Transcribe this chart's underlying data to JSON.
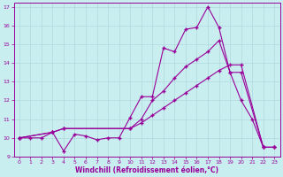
{
  "bg_color": "#c8eef0",
  "grid_color": "#b0d8dc",
  "line_color": "#990099",
  "xlabel": "Windchill (Refroidissement éolien,°C)",
  "xlim": [
    -0.5,
    23.5
  ],
  "ylim": [
    9,
    17.2
  ],
  "xticks": [
    0,
    1,
    2,
    3,
    4,
    5,
    6,
    7,
    8,
    9,
    10,
    11,
    12,
    13,
    14,
    15,
    16,
    17,
    18,
    19,
    20,
    21,
    22,
    23
  ],
  "yticks": [
    9,
    10,
    11,
    12,
    13,
    14,
    15,
    16,
    17
  ],
  "series1_x": [
    0,
    1,
    2,
    3,
    4,
    5,
    6,
    7,
    8,
    9,
    10,
    11,
    12,
    13,
    14,
    15,
    16,
    17,
    18,
    19,
    20,
    21,
    22,
    23
  ],
  "series1_y": [
    10.0,
    10.0,
    10.0,
    10.3,
    9.3,
    10.2,
    10.1,
    9.9,
    10.0,
    10.0,
    11.1,
    12.2,
    12.2,
    14.8,
    14.6,
    15.8,
    15.9,
    17.0,
    15.9,
    13.5,
    12.0,
    11.0,
    9.5,
    9.5
  ],
  "series2_x": [
    0,
    3,
    4,
    10,
    11,
    12,
    13,
    14,
    15,
    16,
    17,
    18,
    19,
    20,
    22,
    23
  ],
  "series2_y": [
    10.0,
    10.3,
    10.5,
    10.5,
    11.0,
    12.0,
    12.5,
    13.2,
    13.8,
    14.2,
    14.6,
    15.2,
    13.5,
    13.5,
    9.5,
    9.5
  ],
  "series3_x": [
    0,
    3,
    4,
    10,
    11,
    12,
    13,
    14,
    15,
    16,
    17,
    18,
    19,
    20,
    22,
    23
  ],
  "series3_y": [
    10.0,
    10.3,
    10.5,
    10.5,
    10.8,
    11.2,
    11.6,
    12.0,
    12.4,
    12.8,
    13.2,
    13.6,
    13.9,
    13.9,
    9.5,
    9.5
  ]
}
